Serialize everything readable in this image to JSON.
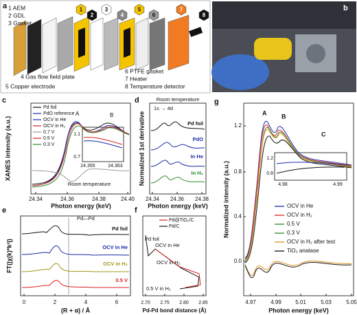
{
  "panels": {
    "a": {
      "label": "a",
      "numbers": [
        "1",
        "2",
        "3",
        "4",
        "5",
        "6",
        "7",
        "8"
      ],
      "items": [
        "1 AEM",
        "2 GDL",
        "3 Gasket",
        "4 Gas flow field plate",
        "5 Copper electrode",
        "6 PTFE gasket",
        "7 Heater",
        "8 Temperature detector"
      ]
    },
    "b": {
      "label": "b"
    },
    "c": {
      "label": "c",
      "y_label": "XANES intensity (a.u.)",
      "x_label": "Photon energy (keV)",
      "x_ticks": [
        "24.34",
        "24.36",
        "24.38",
        "24.40"
      ],
      "peaks": [
        "A",
        "B"
      ],
      "note": "Room temperature",
      "legend": [
        "Pd foil",
        "PdO reference",
        "OCV in He",
        "OCV in H₂",
        "0.7 V",
        "0.5 V",
        "0.3 V"
      ],
      "inset_y_ticks": [
        "1.1",
        "0.7"
      ],
      "inset_x_ticks": [
        "24.355",
        "24.363"
      ]
    },
    "d": {
      "label": "d",
      "y_label": "Normalized 1st derivative",
      "x_label": "Photon energy (keV)",
      "x_ticks": [
        "24.34",
        "24.36",
        "24.38"
      ],
      "note": "Room temperature",
      "transition": "1s → 4d",
      "curves": [
        "Pd foil",
        "PdO",
        "In He",
        "In H₂"
      ]
    },
    "e": {
      "label": "e",
      "y_label": "FT(|χ(k)*k²|)",
      "x_label": "(R + α) / Å",
      "x_ticks": [
        "0",
        "2",
        "4",
        "6"
      ],
      "bond": "Pd—Pd",
      "curves": [
        "Pd foil",
        "OCV in He",
        "OCV in H₂",
        "0.5 V"
      ]
    },
    "f": {
      "label": "f",
      "x_label": "Pd-Pd bond distance (Å)",
      "x_ticks": [
        "2.70",
        "2.75",
        "2.80",
        "2.85"
      ],
      "legend": [
        "Pd@TiO₂/C",
        "Pd/C"
      ],
      "points": [
        "Pd foil",
        "OCV in He",
        "OCV in H₂",
        "0.5 V in H₂"
      ]
    },
    "g": {
      "label": "g",
      "y_label": "Normalized intensity (a.u.)",
      "x_label": "Photon energy (keV)",
      "y_ticks": [
        "0.0",
        "0.4",
        "0.8",
        "1.2"
      ],
      "x_ticks": [
        "4.97",
        "4.99",
        "5.01",
        "5.03",
        "5.05"
      ],
      "peaks": [
        "A",
        "B",
        "C"
      ],
      "inset_y_ticks": [
        "1.2",
        "0.8"
      ],
      "inset_x_ticks": [
        "4.98",
        "4.99"
      ],
      "legend": [
        "OCV in He",
        "OCV in H₂",
        "0.5 V",
        "0.3 V",
        "OCV in H₂ after test",
        "TiO₂ anatase"
      ]
    }
  }
}
